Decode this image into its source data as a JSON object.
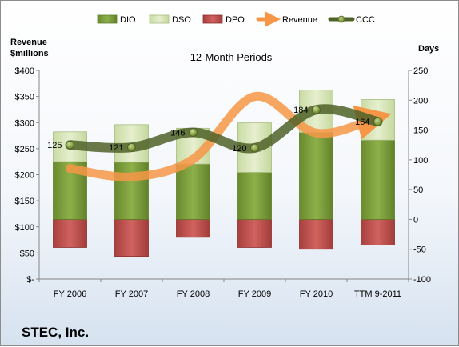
{
  "chart_data": {
    "type": "bar",
    "title": "12-Month Periods",
    "left_axis_label": [
      "Revenue",
      "$millions"
    ],
    "right_axis_label": "Days",
    "company": "STEC, Inc.",
    "categories": [
      "FY 2006",
      "FY 2007",
      "FY 2008",
      "FY 2009",
      "FY 2010",
      "TTM 9-2011"
    ],
    "left_axis": {
      "ylim": [
        0,
        400
      ],
      "ticks": [
        "$-",
        "$50",
        "$100",
        "$150",
        "$200",
        "$250",
        "$300",
        "$350",
        "$400"
      ]
    },
    "right_axis": {
      "ylim": [
        -100,
        250
      ],
      "ticks": [
        "-100",
        "-50",
        "0",
        "50",
        "100",
        "150",
        "200",
        "250"
      ]
    },
    "legend": [
      "DIO",
      "DSO",
      "DPO",
      "Revenue",
      "CCC"
    ],
    "series": [
      {
        "name": "DIO",
        "axis": "right",
        "kind": "stacked-bar",
        "color": "#77933c",
        "values": [
          97,
          96,
          93,
          79,
          146,
          133
        ]
      },
      {
        "name": "DSO",
        "axis": "right",
        "kind": "stacked-bar",
        "color": "#d7e4bd",
        "values": [
          50,
          63,
          60,
          83,
          71,
          68
        ]
      },
      {
        "name": "DPO",
        "axis": "right",
        "kind": "negative-bar",
        "color": "#c0504d",
        "values": [
          -47,
          -62,
          -30,
          -47,
          -50,
          -43
        ]
      },
      {
        "name": "Revenue",
        "axis": "left",
        "kind": "line",
        "color": "#f79646",
        "values": [
          212,
          196,
          230,
          350,
          280,
          310
        ]
      },
      {
        "name": "CCC",
        "axis": "right",
        "kind": "line",
        "color": "#4f6228",
        "values": [
          125,
          121,
          146,
          120,
          184,
          164
        ]
      }
    ],
    "data_labels": [
      "125",
      "121",
      "146",
      "120",
      "184",
      "164"
    ],
    "grid": false,
    "legend_position": "top"
  }
}
